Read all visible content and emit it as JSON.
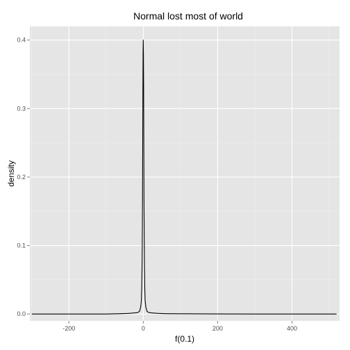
{
  "chart_data": {
    "type": "line",
    "title": "Normal lost most of world",
    "xlabel": "f(0.1)",
    "ylabel": "density",
    "xlim": [
      -305,
      528
    ],
    "ylim": [
      -0.01,
      0.42
    ],
    "x_ticks": [
      -200,
      0,
      200,
      400
    ],
    "x_tick_labels": [
      "-200",
      "0",
      "200",
      "400"
    ],
    "y_ticks": [
      0.0,
      0.1,
      0.2,
      0.3,
      0.4
    ],
    "y_tick_labels": [
      "0.0",
      "0.1",
      "0.2",
      "0.3",
      "0.4"
    ],
    "grid": true,
    "legend": "none",
    "colors": {
      "panel": "#e5e5e5",
      "grid_major": "#ffffff",
      "grid_minor": "#f2f2f2",
      "line": "#000000"
    },
    "series": [
      {
        "x": [
          -300,
          -150,
          -100,
          -60,
          -40,
          -25,
          -15,
          -10,
          -7,
          -5,
          -4,
          -3,
          -2,
          -1.5,
          -1,
          -0.5,
          0,
          0.5,
          1,
          1.5,
          2,
          3,
          4,
          5,
          7,
          10,
          15,
          25,
          40,
          60,
          100,
          150,
          200,
          300,
          400,
          520
        ],
        "y": [
          0.0,
          0.0,
          0.0,
          0.0005,
          0.0008,
          0.0015,
          0.002,
          0.004,
          0.01,
          0.02,
          0.04,
          0.08,
          0.16,
          0.24,
          0.33,
          0.38,
          0.4,
          0.38,
          0.33,
          0.24,
          0.16,
          0.08,
          0.04,
          0.02,
          0.01,
          0.004,
          0.002,
          0.0015,
          0.0008,
          0.0005,
          0.0003,
          0.0002,
          0.0001,
          0.0,
          0.0,
          0.0
        ]
      }
    ]
  }
}
